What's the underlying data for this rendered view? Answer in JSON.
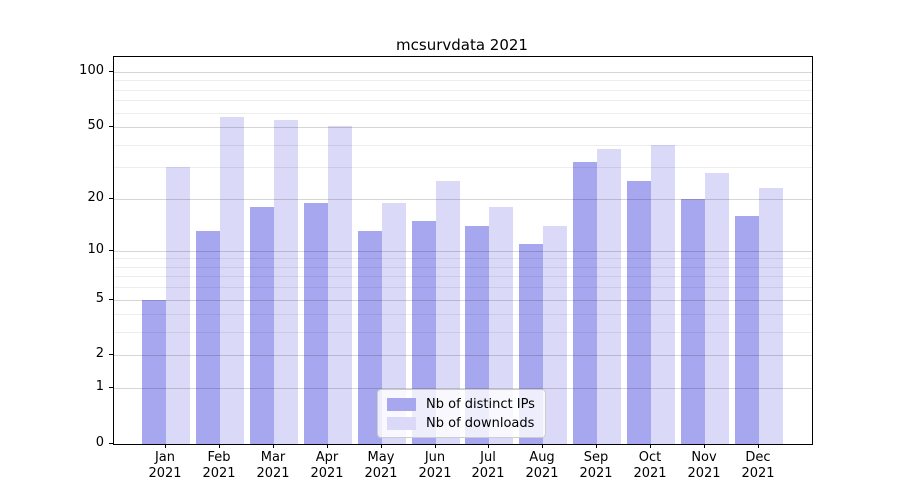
{
  "chart_data": {
    "type": "bar",
    "title": "mcsurvdata 2021",
    "categories": [
      "Jan 2021",
      "Feb 2021",
      "Mar 2021",
      "Apr 2021",
      "May 2021",
      "Jun 2021",
      "Jul 2021",
      "Aug 2021",
      "Sep 2021",
      "Oct 2021",
      "Nov 2021",
      "Dec 2021"
    ],
    "x_tick_labels": [
      [
        "Jan",
        "2021"
      ],
      [
        "Feb",
        "2021"
      ],
      [
        "Mar",
        "2021"
      ],
      [
        "Apr",
        "2021"
      ],
      [
        "May",
        "2021"
      ],
      [
        "Jun",
        "2021"
      ],
      [
        "Jul",
        "2021"
      ],
      [
        "Aug",
        "2021"
      ],
      [
        "Sep",
        "2021"
      ],
      [
        "Oct",
        "2021"
      ],
      [
        "Nov",
        "2021"
      ],
      [
        "Dec",
        "2021"
      ]
    ],
    "series": [
      {
        "name": "Nb of distinct IPs",
        "color": "#a7a7f0",
        "values": [
          5,
          13,
          18,
          19,
          13,
          15,
          14,
          11,
          32,
          25,
          20,
          16
        ]
      },
      {
        "name": "Nb of downloads",
        "color": "#dadaf8",
        "values": [
          30,
          57,
          55,
          51,
          19,
          25,
          18,
          14,
          38,
          40,
          28,
          23
        ]
      }
    ],
    "yscale": "log1p",
    "y_ticks": [
      0,
      1,
      2,
      5,
      10,
      20,
      50,
      100
    ],
    "ylim": [
      0,
      121
    ],
    "grid": true,
    "legend_position": "lower center",
    "colors": {
      "bar_dark": "#a7a7f0",
      "bar_light": "#dadaf8",
      "grid_major": "#d6d6d6",
      "grid_minor": "#ededed",
      "axis": "#000000"
    }
  }
}
